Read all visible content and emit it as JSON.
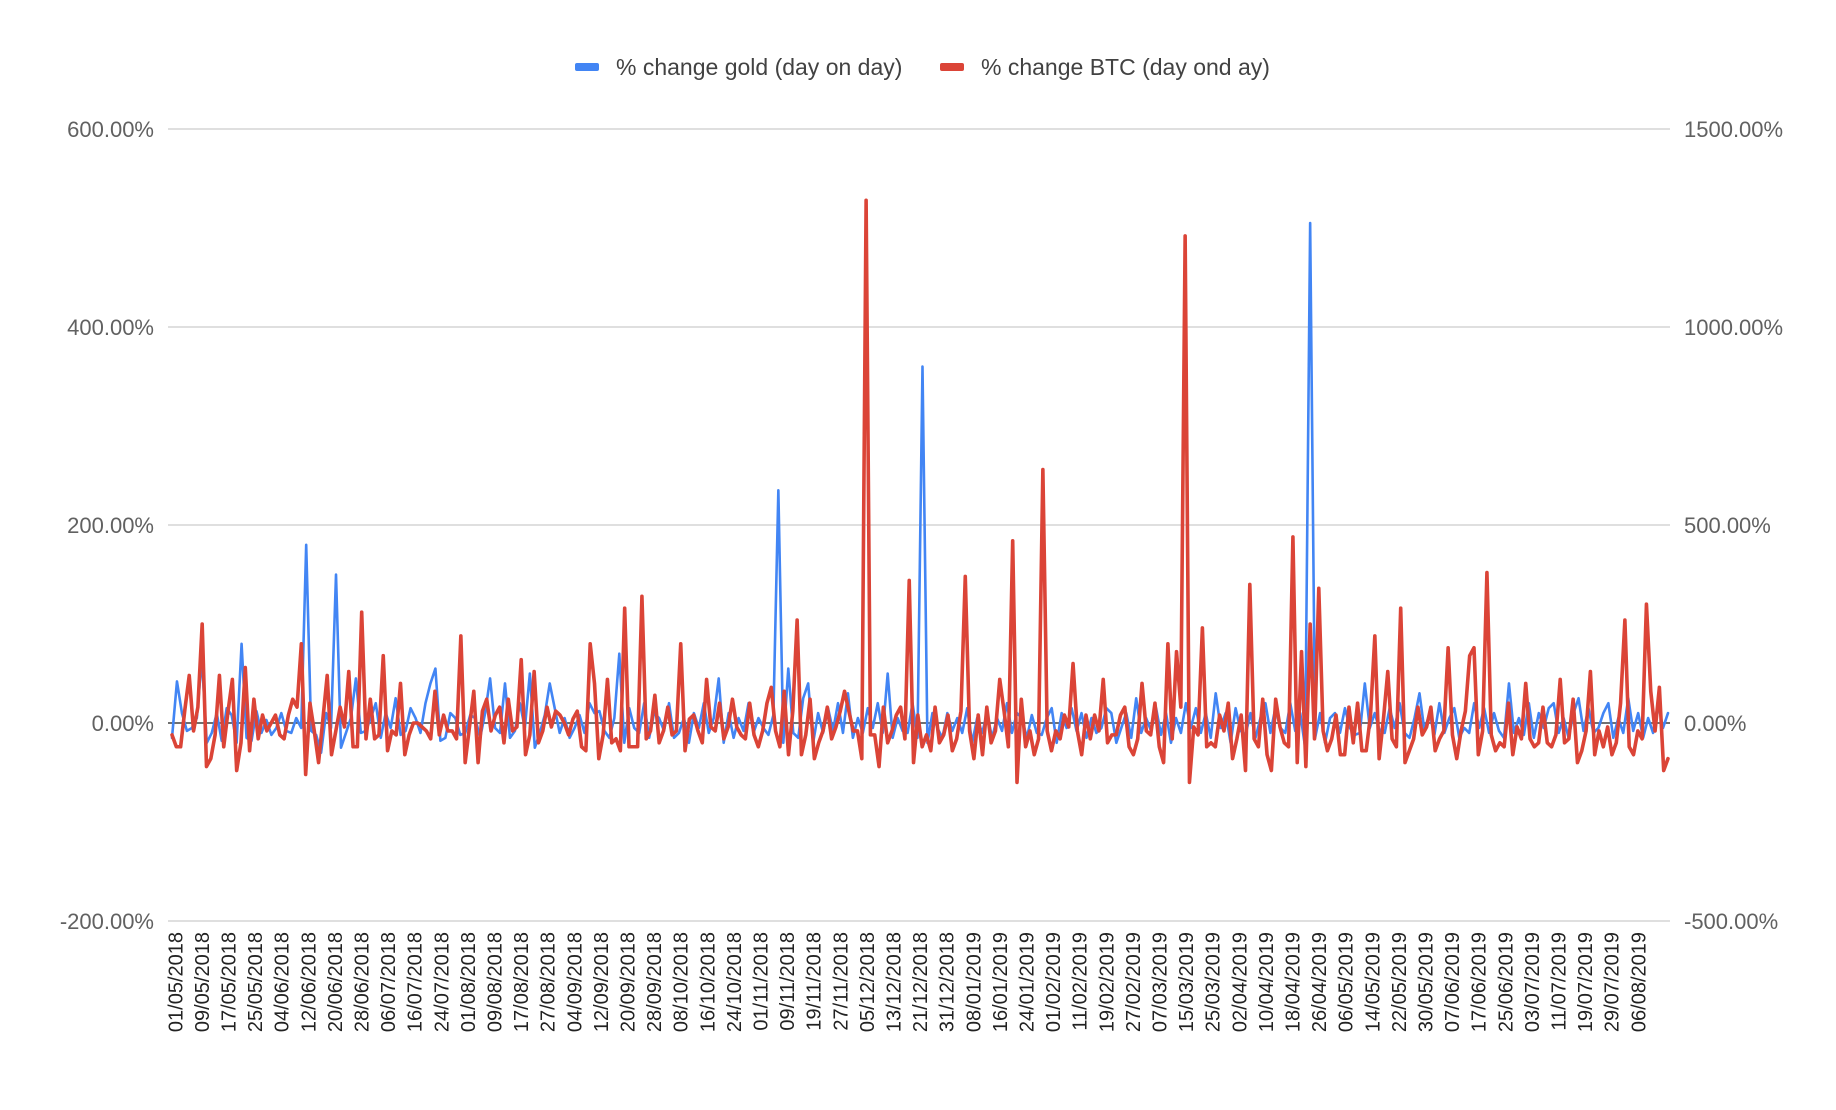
{
  "chart_data": {
    "type": "line",
    "title": "",
    "xlabel": "",
    "ylabel_left": "",
    "ylabel_right": "",
    "legend_position": "top-center",
    "grid": true,
    "left_axis": {
      "ylim": [
        -200,
        600
      ],
      "ticks": [
        -200,
        0,
        200,
        400,
        600
      ],
      "tick_labels": [
        "-200.00%",
        "0.00%",
        "200.00%",
        "400.00%",
        "600.00%"
      ]
    },
    "right_axis": {
      "ylim": [
        -500,
        1500
      ],
      "ticks": [
        -500,
        0,
        500,
        1000,
        1500
      ],
      "tick_labels": [
        "-500.00%",
        "0.00%",
        "500.00%",
        "1000.00%",
        "1500.00%"
      ]
    },
    "x_tick_labels": [
      "01/05/2018",
      "09/05/2018",
      "17/05/2018",
      "25/05/2018",
      "04/06/2018",
      "12/06/2018",
      "20/06/2018",
      "28/06/2018",
      "06/07/2018",
      "16/07/2018",
      "24/07/2018",
      "01/08/2018",
      "09/08/2018",
      "17/08/2018",
      "27/08/2018",
      "04/09/2018",
      "12/09/2018",
      "20/09/2018",
      "28/09/2018",
      "08/10/2018",
      "16/10/2018",
      "24/10/2018",
      "01/11/2018",
      "09/11/2018",
      "19/11/2018",
      "27/11/2018",
      "05/12/2018",
      "13/12/2018",
      "21/12/2018",
      "31/12/2018",
      "08/01/2019",
      "16/01/2019",
      "24/01/2019",
      "01/02/2019",
      "11/02/2019",
      "19/02/2019",
      "27/02/2019",
      "07/03/2019",
      "15/03/2019",
      "25/03/2019",
      "02/04/2019",
      "10/04/2019",
      "18/04/2019",
      "26/04/2019",
      "06/05/2019",
      "14/05/2019",
      "22/05/2019",
      "30/05/2019",
      "07/06/2019",
      "17/06/2019",
      "25/06/2019",
      "03/07/2019",
      "11/07/2019",
      "19/07/2019",
      "29/07/2019",
      "06/08/2019"
    ],
    "series": [
      {
        "name": "% change gold (day on day)",
        "axis": "left",
        "color": "#4285f4",
        "values": [
          -15,
          42,
          10,
          -8,
          -5,
          5,
          65,
          -20,
          -10,
          10,
          -18,
          15,
          8,
          -20,
          80,
          -15,
          -18,
          12,
          -10,
          3,
          -12,
          -5,
          10,
          -8,
          -10,
          5,
          -5,
          180,
          -8,
          -12,
          -30,
          10,
          -5,
          150,
          -25,
          -10,
          5,
          45,
          -10,
          -8,
          5,
          20,
          -15,
          10,
          -5,
          25,
          -12,
          -8,
          15,
          5,
          -10,
          20,
          40,
          55,
          -18,
          -15,
          10,
          5,
          -12,
          -10,
          8,
          5,
          -15,
          10,
          45,
          -5,
          -10,
          40,
          -15,
          -8,
          20,
          -5,
          50,
          -25,
          -10,
          8,
          40,
          15,
          -10,
          5,
          -15,
          -5,
          8,
          -10,
          20,
          10,
          12,
          -8,
          -15,
          5,
          70,
          -20,
          15,
          -5,
          -10,
          20,
          -15,
          10,
          5,
          -8,
          20,
          -15,
          -10,
          5,
          -20,
          10,
          -5,
          20,
          -10,
          5,
          45,
          -20,
          10,
          -15,
          5,
          -8,
          20,
          -10,
          5,
          -5,
          -12,
          8,
          235,
          -20,
          55,
          -10,
          -15,
          25,
          40,
          -20,
          10,
          -10,
          15,
          -8,
          20,
          -10,
          30,
          -15,
          5,
          -10,
          15,
          -5,
          20,
          -10,
          50,
          -15,
          5,
          -8,
          -10,
          20,
          -15,
          360,
          -20,
          10,
          -5,
          -15,
          10,
          -8,
          5,
          -10,
          15,
          -20,
          5,
          -10,
          10,
          -15,
          5,
          -8,
          20,
          -10,
          10,
          5,
          -15,
          8,
          -10,
          -12,
          5,
          15,
          -20,
          10,
          -5,
          15,
          -8,
          10,
          -15,
          5,
          -10,
          -5,
          15,
          10,
          -20,
          -5,
          10,
          -15,
          25,
          -10,
          5,
          -8,
          15,
          -12,
          10,
          -20,
          5,
          -10,
          20,
          -5,
          15,
          -10,
          10,
          -15,
          30,
          -5,
          10,
          -20,
          15,
          -8,
          -12,
          10,
          -15,
          5,
          20,
          -10,
          15,
          -5,
          -10,
          20,
          -8,
          10,
          -25,
          505,
          -15,
          10,
          -20,
          5,
          10,
          -10,
          15,
          -5,
          -12,
          -10,
          40,
          -5,
          10,
          -8,
          -10,
          15,
          -5,
          20,
          -10,
          -15,
          5,
          30,
          -8,
          10,
          -12,
          20,
          -10,
          5,
          15,
          -15,
          -5,
          -10,
          20,
          -5,
          15,
          -10,
          10,
          -8,
          -15,
          40,
          -10,
          5,
          -12,
          20,
          -15,
          10,
          -5,
          15,
          20,
          -10,
          5,
          -15,
          10,
          25,
          -8,
          15,
          -10,
          -5,
          10,
          20,
          -15,
          5,
          -10,
          25,
          -8,
          10,
          -15,
          5,
          -10,
          20,
          -5,
          10
        ]
      },
      {
        "name": "% change BTC (day ond ay)",
        "axis": "right",
        "color": "#db4437",
        "values": [
          -30,
          -60,
          -60,
          35,
          120,
          -20,
          40,
          250,
          -110,
          -90,
          -30,
          120,
          -60,
          30,
          110,
          -120,
          -50,
          140,
          -70,
          60,
          -40,
          20,
          -20,
          0,
          20,
          -30,
          -40,
          20,
          60,
          40,
          200,
          -130,
          50,
          -20,
          -100,
          10,
          120,
          -80,
          -20,
          40,
          -10,
          130,
          -60,
          -60,
          280,
          -40,
          60,
          -40,
          -30,
          170,
          -70,
          -20,
          -30,
          100,
          -80,
          -30,
          0,
          0,
          -10,
          -20,
          -40,
          80,
          -30,
          20,
          -20,
          -20,
          -40,
          220,
          -100,
          -10,
          80,
          -100,
          30,
          60,
          -20,
          20,
          40,
          -50,
          60,
          -20,
          -10,
          160,
          -80,
          -30,
          130,
          -50,
          -20,
          40,
          -10,
          30,
          20,
          0,
          -30,
          10,
          30,
          -60,
          -70,
          200,
          100,
          -90,
          -30,
          110,
          -50,
          -40,
          -70,
          290,
          -60,
          -60,
          -60,
          320,
          -40,
          -20,
          70,
          -50,
          -20,
          40,
          -30,
          -20,
          200,
          -70,
          10,
          20,
          -20,
          -50,
          110,
          -10,
          -20,
          50,
          -40,
          -10,
          60,
          -10,
          -30,
          -40,
          50,
          -30,
          -60,
          -20,
          50,
          90,
          -20,
          -60,
          80,
          -80,
          30,
          260,
          -80,
          -30,
          60,
          -90,
          -50,
          -20,
          40,
          -40,
          -10,
          30,
          80,
          30,
          -20,
          -20,
          -90,
          1320,
          -30,
          -30,
          -110,
          40,
          -50,
          -20,
          20,
          40,
          -40,
          360,
          -100,
          20,
          -60,
          -30,
          -70,
          40,
          -50,
          -30,
          20,
          -70,
          -40,
          30,
          370,
          -20,
          -90,
          20,
          -80,
          40,
          -50,
          -20,
          110,
          30,
          -60,
          460,
          -150,
          60,
          -60,
          -20,
          -80,
          -40,
          640,
          -20,
          -70,
          -20,
          -40,
          20,
          -10,
          150,
          -20,
          -80,
          20,
          -40,
          20,
          -20,
          110,
          -50,
          -30,
          -30,
          20,
          40,
          -60,
          -80,
          -40,
          100,
          -20,
          -30,
          50,
          -60,
          -100,
          200,
          -40,
          180,
          40,
          1230,
          -150,
          -10,
          -30,
          240,
          -60,
          -50,
          -60,
          20,
          -20,
          50,
          -90,
          -40,
          20,
          -120,
          350,
          -40,
          -60,
          60,
          -80,
          -120,
          60,
          -10,
          -50,
          -60,
          470,
          -100,
          180,
          -110,
          250,
          -40,
          340,
          -20,
          -70,
          -40,
          20,
          -80,
          -80,
          40,
          -50,
          50,
          -70,
          -70,
          20,
          220,
          -90,
          10,
          130,
          -40,
          -60,
          290,
          -100,
          -70,
          -40,
          40,
          -30,
          -10,
          40,
          -70,
          -40,
          -20,
          190,
          -30,
          -90,
          -20,
          30,
          170,
          190,
          -80,
          -20,
          380,
          -30,
          -70,
          -50,
          -60,
          50,
          -80,
          -10,
          -40,
          100,
          -40,
          -60,
          -50,
          40,
          -50,
          -60,
          -30,
          110,
          -50,
          -40,
          60,
          -100,
          -70,
          -20,
          130,
          -80,
          -20,
          -60,
          -10,
          -80,
          -50,
          50,
          260,
          -60,
          -80,
          -20,
          -40,
          300,
          80,
          -20,
          90,
          -120,
          -90
        ]
      }
    ]
  }
}
